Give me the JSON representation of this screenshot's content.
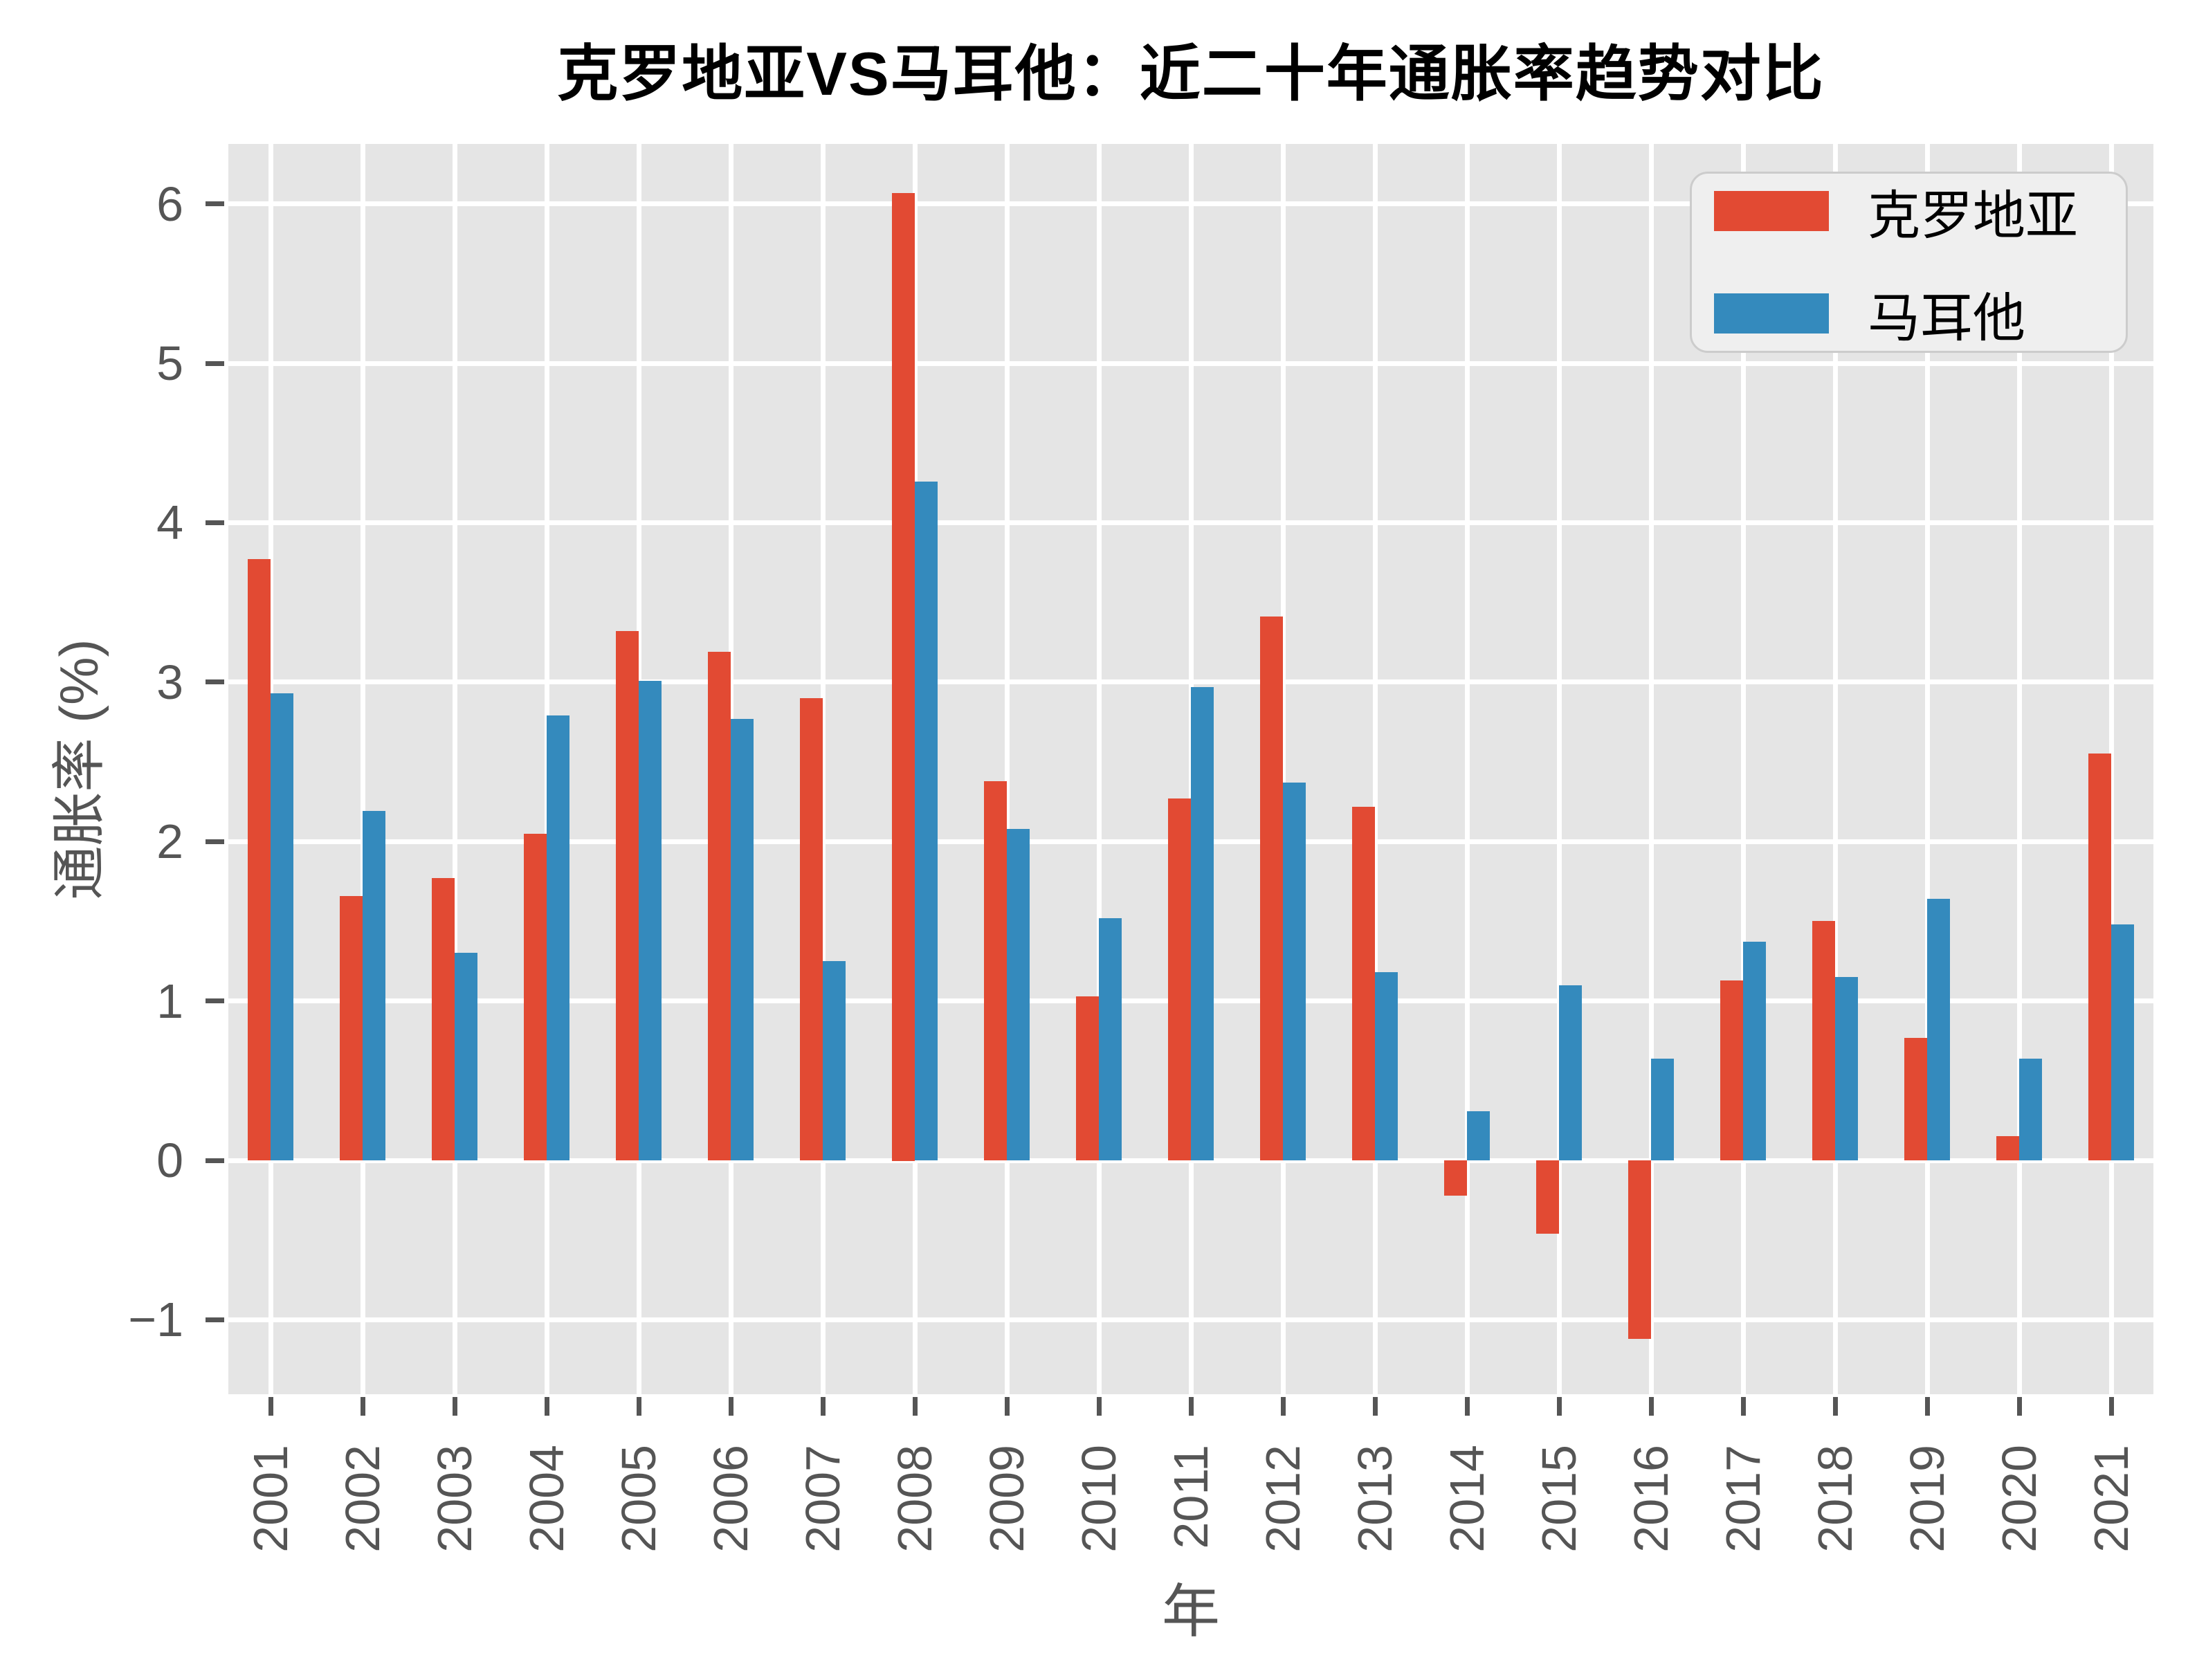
{
  "figure": {
    "title": "克罗地亚VS马耳他：近二十年通胀率趋势对比",
    "x_axis_label": "年",
    "y_axis_label": "通胀率 (%)"
  },
  "legend": {
    "entries": [
      {
        "label": "克罗地亚",
        "color": "#E24A33"
      },
      {
        "label": "马耳他",
        "color": "#348ABD"
      }
    ]
  },
  "colors": {
    "croatia_bar": "#E24A33",
    "malta_bar": "#348ABD",
    "plot_background": "#E5E5E5",
    "gridline": "#FFFFFF",
    "tick_label": "#555555",
    "title_text": "#000000",
    "legend_background": "#EFEFEF",
    "legend_border": "#CCCCCC"
  },
  "chart_data": {
    "type": "bar",
    "title": "克罗地亚VS马耳他：近二十年通胀率趋势对比",
    "xlabel": "年",
    "ylabel": "通胀率 (%)",
    "categories": [
      "2001",
      "2002",
      "2003",
      "2004",
      "2005",
      "2006",
      "2007",
      "2008",
      "2009",
      "2010",
      "2011",
      "2012",
      "2013",
      "2014",
      "2015",
      "2016",
      "2017",
      "2018",
      "2019",
      "2020",
      "2021"
    ],
    "series": [
      {
        "name": "克罗地亚",
        "color": "#E24A33",
        "values": [
          3.77,
          1.66,
          1.77,
          2.05,
          3.32,
          3.19,
          2.9,
          6.07,
          2.38,
          1.03,
          2.27,
          3.41,
          2.22,
          -0.22,
          -0.46,
          -1.12,
          1.13,
          1.5,
          0.77,
          0.15,
          2.55
        ]
      },
      {
        "name": "马耳他",
        "color": "#348ABD",
        "values": [
          2.93,
          2.19,
          1.3,
          2.79,
          3.01,
          2.77,
          1.25,
          4.26,
          2.08,
          1.52,
          2.97,
          2.37,
          1.18,
          0.31,
          1.1,
          0.64,
          1.37,
          1.15,
          1.64,
          0.64,
          1.48
        ]
      }
    ],
    "yticks": [
      6,
      5,
      4,
      3,
      2,
      1,
      0,
      -1
    ],
    "ytick_labels": [
      "6",
      "5",
      "4",
      "3",
      "2",
      "1",
      "0",
      "−1"
    ],
    "ylim": [
      -1.467,
      6.376
    ],
    "grid": true,
    "grid_color": "#FFFFFF",
    "legend_position": "upper right",
    "plot_background": "#E5E5E5"
  }
}
